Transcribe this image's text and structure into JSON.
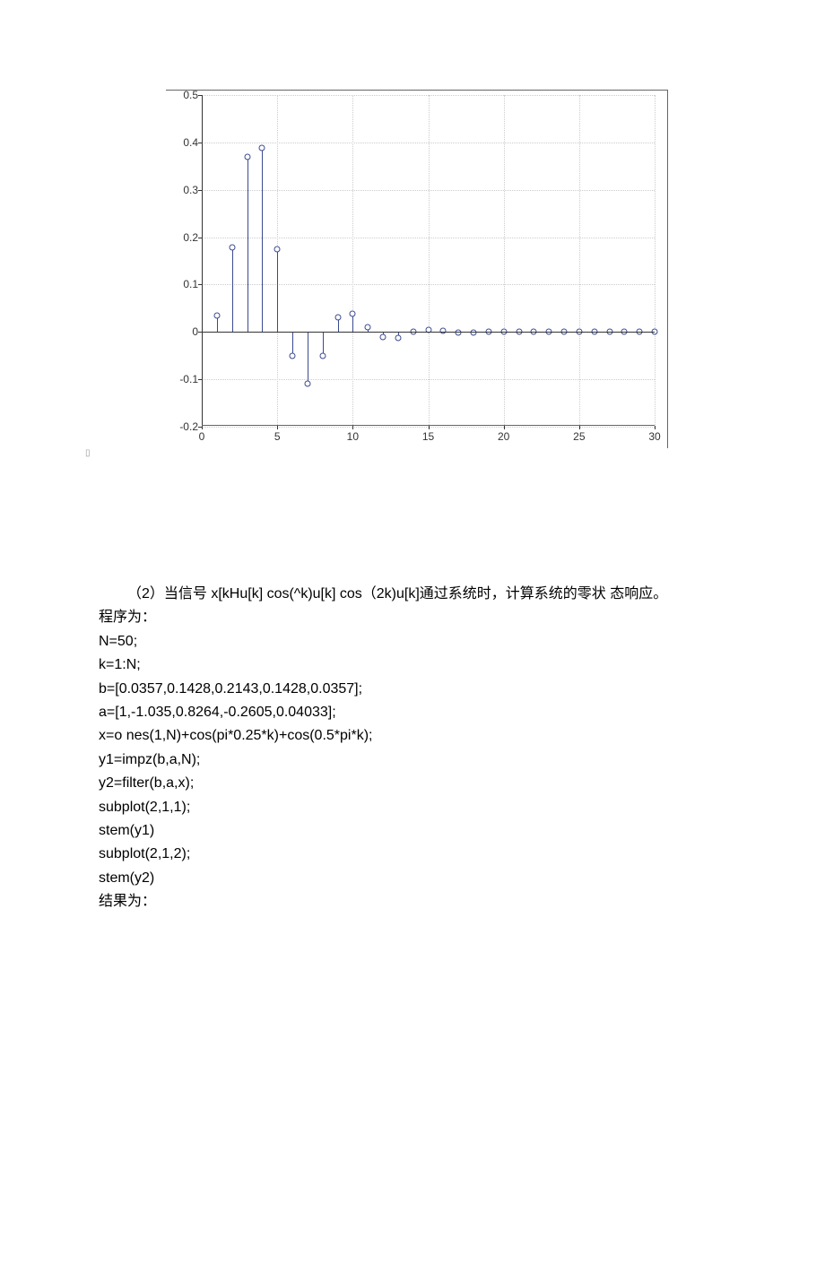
{
  "chart": {
    "type": "stem",
    "ylim": [
      -0.2,
      0.5
    ],
    "xlim": [
      0,
      30
    ],
    "yticks": [
      -0.2,
      -0.1,
      0,
      0.1,
      0.2,
      0.3,
      0.4,
      0.5
    ],
    "ytick_labels": [
      "-0.2",
      "-0.1",
      "0",
      "0.1",
      "0.2",
      "0.3",
      "0.4",
      "0.5"
    ],
    "xticks": [
      0,
      5,
      10,
      15,
      20,
      25,
      30
    ],
    "xtick_labels": [
      "0",
      "5",
      "10",
      "15",
      "20",
      "25",
      "30"
    ],
    "stem_color": "#3b4a8f",
    "marker_edge_color": "#3b4a8f",
    "marker_face_color": "#ffffff",
    "grid_color": "#cccccc",
    "background_color": "#ffffff",
    "axis_color": "#333333",
    "label_fontsize": 12,
    "data": [
      {
        "x": 1,
        "y": 0.035
      },
      {
        "x": 2,
        "y": 0.178
      },
      {
        "x": 3,
        "y": 0.37
      },
      {
        "x": 4,
        "y": 0.388
      },
      {
        "x": 5,
        "y": 0.175
      },
      {
        "x": 6,
        "y": -0.05
      },
      {
        "x": 7,
        "y": -0.11
      },
      {
        "x": 8,
        "y": -0.05
      },
      {
        "x": 9,
        "y": 0.03
      },
      {
        "x": 10,
        "y": 0.038
      },
      {
        "x": 11,
        "y": 0.01
      },
      {
        "x": 12,
        "y": -0.01
      },
      {
        "x": 13,
        "y": -0.012
      },
      {
        "x": 14,
        "y": 0.0
      },
      {
        "x": 15,
        "y": 0.004
      },
      {
        "x": 16,
        "y": 0.002
      },
      {
        "x": 17,
        "y": -0.001
      },
      {
        "x": 18,
        "y": -0.001
      },
      {
        "x": 19,
        "y": 0.0
      },
      {
        "x": 20,
        "y": 0.0
      },
      {
        "x": 21,
        "y": 0.0
      },
      {
        "x": 22,
        "y": 0.0
      },
      {
        "x": 23,
        "y": 0.0
      },
      {
        "x": 24,
        "y": 0.0
      },
      {
        "x": 25,
        "y": 0.0
      },
      {
        "x": 26,
        "y": 0.0
      },
      {
        "x": 27,
        "y": 0.0
      },
      {
        "x": 28,
        "y": 0.0
      },
      {
        "x": 29,
        "y": 0.0
      },
      {
        "x": 30,
        "y": 0.0
      }
    ]
  },
  "text": {
    "q2": "（2）当信号 x[kHu[k] cos(^k)u[k] cos（2k)u[k]通过系统时，计算系统的零状 态响应。",
    "line_program": "程序为：",
    "code": {
      "l1": "N=50;",
      "l2": "k=1:N;",
      "l3": "b=[0.0357,0.1428,0.2143,0.1428,0.0357];",
      "l4": "a=[1,-1.035,0.8264,-0.2605,0.04033];",
      "l5": "x=o nes(1,N)+cos(pi*0.25*k)+cos(0.5*pi*k);",
      "l6": "y1=impz(b,a,N);",
      "l7": "y2=filter(b,a,x);",
      "l8": "subplot(2,1,1);",
      "l9": "stem(y1)",
      "l10": "subplot(2,1,2);",
      "l11": "stem(y2)"
    },
    "result": "结果为："
  }
}
